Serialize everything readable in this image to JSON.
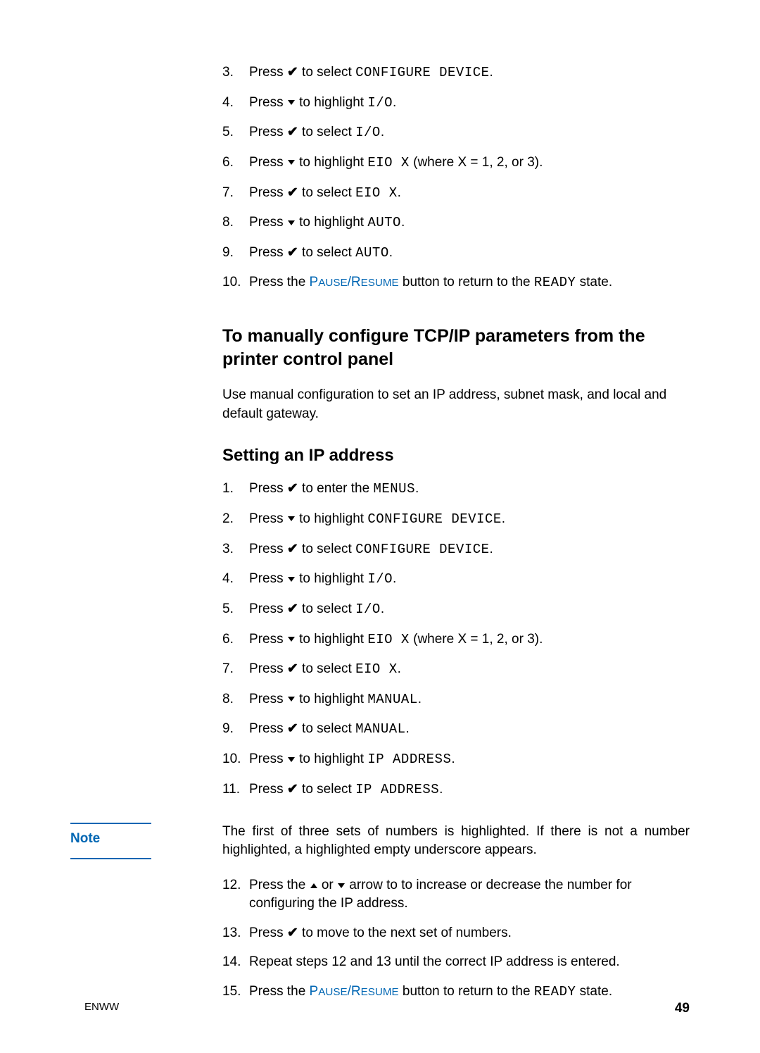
{
  "footer": {
    "left": "ENWW",
    "page": "49"
  },
  "glyphs": {
    "check": "✔"
  },
  "listA": [
    {
      "n": "3.",
      "pre": "Press ",
      "sym": "check",
      "mid": " to select ",
      "mono": "CONFIGURE DEVICE",
      "post": "."
    },
    {
      "n": "4.",
      "pre": "Press ",
      "sym": "down",
      "mid": " to highlight ",
      "mono": "I/O",
      "post": "."
    },
    {
      "n": "5.",
      "pre": "Press ",
      "sym": "check",
      "mid": " to select ",
      "mono": "I/O",
      "post": "."
    },
    {
      "n": "6.",
      "pre": "Press ",
      "sym": "down",
      "mid": " to highlight ",
      "mono": "EIO X",
      "post": " (where X = 1, 2, or 3)."
    },
    {
      "n": "7.",
      "pre": "Press ",
      "sym": "check",
      "mid": " to select ",
      "mono": "EIO X",
      "post": "."
    },
    {
      "n": "8.",
      "pre": "Press ",
      "sym": "down",
      "mid": " to highlight ",
      "mono": "AUTO",
      "post": "."
    },
    {
      "n": "9.",
      "pre": "Press ",
      "sym": "check",
      "mid": " to select ",
      "mono": "AUTO",
      "post": "."
    }
  ],
  "listA_last": {
    "n": "10.",
    "pre": "Press the ",
    "sc": "Pause/Resume",
    "mid": " button to return to the ",
    "mono": "READY",
    "post": " state."
  },
  "h2": "To manually configure TCP/IP parameters from the printer control panel",
  "intro": "Use manual configuration to set an IP address, subnet mask, and local and default gateway.",
  "h3": "Setting an IP address",
  "listB": [
    {
      "n": "1.",
      "pre": "Press ",
      "sym": "check",
      "mid": " to enter the ",
      "mono": "MENUS",
      "post": "."
    },
    {
      "n": "2.",
      "pre": "Press ",
      "sym": "down",
      "mid": " to highlight ",
      "mono": "CONFIGURE DEVICE",
      "post": "."
    },
    {
      "n": "3.",
      "pre": "Press ",
      "sym": "check",
      "mid": " to select ",
      "mono": "CONFIGURE DEVICE",
      "post": "."
    },
    {
      "n": "4.",
      "pre": "Press ",
      "sym": "down",
      "mid": " to highlight ",
      "mono": "I/O",
      "post": "."
    },
    {
      "n": "5.",
      "pre": "Press ",
      "sym": "check",
      "mid": " to select ",
      "mono": "I/O",
      "post": "."
    },
    {
      "n": "6.",
      "pre": "Press ",
      "sym": "down",
      "mid": " to highlight ",
      "mono": "EIO X",
      "post": " (where X = 1, 2, or 3)."
    },
    {
      "n": "7.",
      "pre": "Press ",
      "sym": "check",
      "mid": " to select ",
      "mono": "EIO X",
      "post": "."
    },
    {
      "n": "8.",
      "pre": "Press ",
      "sym": "down",
      "mid": " to highlight ",
      "mono": "MANUAL",
      "post": "."
    },
    {
      "n": "9.",
      "pre": "Press ",
      "sym": "check",
      "mid": " to select ",
      "mono": "MANUAL",
      "post": "."
    },
    {
      "n": "10.",
      "pre": "Press ",
      "sym": "down",
      "mid": " to highlight ",
      "mono": "IP ADDRESS",
      "post": "."
    },
    {
      "n": "11.",
      "pre": "Press ",
      "sym": "check",
      "mid": " to select ",
      "mono": "IP ADDRESS",
      "post": "."
    }
  ],
  "note": {
    "label": "Note",
    "body": "The first of three sets of numbers is highlighted. If there is not a number highlighted, a highlighted empty underscore appears."
  },
  "listC_12": {
    "n": "12.",
    "pre": "Press the ",
    "mid1": " or ",
    "mid2": " arrow to to increase or decrease the number for configuring the IP address."
  },
  "listC_13": {
    "n": "13.",
    "pre": "Press ",
    "post": " to move to the next set of numbers."
  },
  "listC_14": {
    "n": "14.",
    "text": "Repeat steps 12 and 13 until the correct IP address is entered."
  },
  "listC_15": {
    "n": "15.",
    "pre": "Press the ",
    "sc": "Pause/Resume",
    "mid": " button to return to the ",
    "mono": "READY",
    "post": " state."
  }
}
